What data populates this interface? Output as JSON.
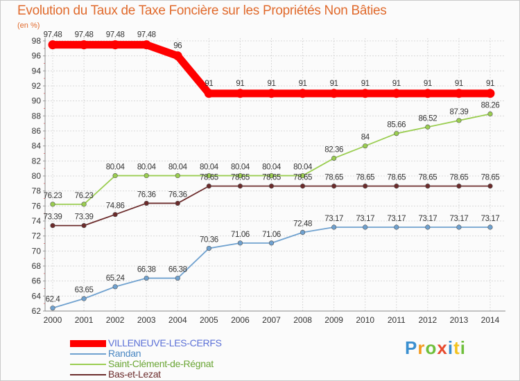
{
  "chart_data": {
    "type": "line",
    "title": "Evolution du Taux de Taxe Foncière sur les Propriétés Non Bâties",
    "ylabel": "(en %)",
    "x": [
      "2000",
      "2001",
      "2002",
      "2003",
      "2004",
      "2005",
      "2006",
      "2007",
      "2008",
      "2009",
      "2010",
      "2011",
      "2012",
      "2013",
      "2014"
    ],
    "ylim": [
      62,
      98
    ],
    "yticks": [
      62,
      64,
      66,
      68,
      70,
      72,
      74,
      76,
      78,
      80,
      82,
      84,
      86,
      88,
      90,
      92,
      94,
      96,
      98
    ],
    "grid": true,
    "legend_position": "bottom-left",
    "series": [
      {
        "name": "VILLENEUVE-LES-CERFS",
        "color": "#ff0000",
        "values": [
          97.48,
          97.48,
          97.48,
          97.48,
          96,
          91,
          91,
          91,
          91,
          91,
          91,
          91,
          91,
          91,
          91
        ],
        "labels": [
          "97.48",
          "97.48",
          "97.48",
          "97.48",
          "96",
          "91",
          "91",
          "91",
          "91",
          "91",
          "91",
          "91",
          "91",
          "91",
          "91"
        ]
      },
      {
        "name": "Randan",
        "color": "#6fa1cf",
        "values": [
          62.4,
          63.65,
          65.24,
          66.38,
          66.38,
          70.36,
          71.06,
          71.06,
          72.48,
          73.17,
          73.17,
          73.17,
          73.17,
          73.17,
          73.17
        ],
        "labels": [
          "62.4",
          "63.65",
          "65.24",
          "66.38",
          "66.38",
          "70.36",
          "71.06",
          "71.06",
          "72.48",
          "73.17",
          "73.17",
          "73.17",
          "73.17",
          "73.17",
          "73.17"
        ]
      },
      {
        "name": "Saint-Clément-de-Régnat",
        "color": "#9acd50",
        "values": [
          76.23,
          76.23,
          80.04,
          80.04,
          80.04,
          80.04,
          80.04,
          80.04,
          80.04,
          82.36,
          84,
          85.66,
          86.52,
          87.39,
          88.26
        ],
        "labels": [
          "76.23",
          "76.23",
          "80.04",
          "80.04",
          "80.04",
          "80.04",
          "80.04",
          "80.04",
          "80.04",
          "82.36",
          "84",
          "85.66",
          "86.52",
          "87.39",
          "88.26"
        ]
      },
      {
        "name": "Bas-et-Lezat",
        "color": "#6b2b2b",
        "values": [
          73.39,
          73.39,
          74.86,
          76.36,
          76.36,
          78.65,
          78.65,
          78.65,
          78.65,
          78.65,
          78.65,
          78.65,
          78.65,
          78.65,
          78.65
        ],
        "labels": [
          "73.39",
          "73.39",
          "74.86",
          "76.36",
          "76.36",
          "78.65",
          "78.65",
          "78.65",
          "78.65",
          "78.65",
          "78.65",
          "78.65",
          "78.65",
          "78.65",
          "78.65"
        ]
      }
    ]
  },
  "logo": {
    "letters": [
      "P",
      "r",
      "o",
      "x",
      "i",
      "t",
      "i"
    ],
    "colors": [
      "#3a8fd0",
      "#f39a1e",
      "#6fbf3b",
      "#e84a2e",
      "#3a8fd0",
      "#f3c21e",
      "#6fbf3b"
    ]
  }
}
